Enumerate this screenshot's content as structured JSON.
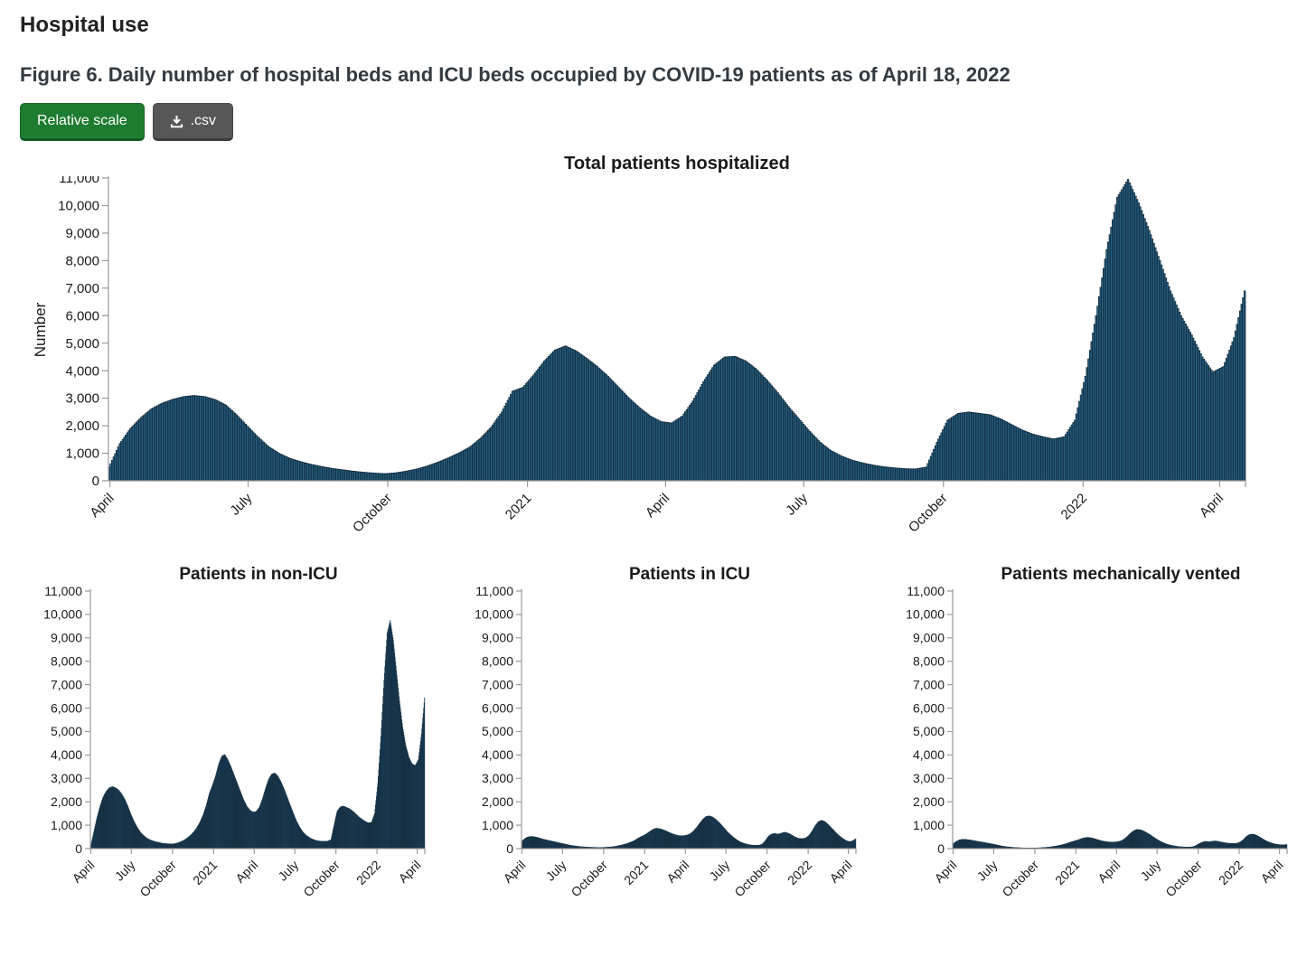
{
  "page": {
    "heading": "Hospital use",
    "figure_caption": "Figure 6. Daily number of hospital beds and ICU beds occupied by COVID-19 patients as of April 18, 2022"
  },
  "toolbar": {
    "relative_scale_label": "Relative scale",
    "csv_label": ".csv",
    "csv_icon": "download-icon"
  },
  "colors": {
    "bar_fill": "#2b6a8d",
    "bar_stroke": "#0e2233",
    "accent_green": "#1e7c31",
    "button_gray": "#575757",
    "axis_line": "#999999",
    "text": "#1a1a1a"
  },
  "axis": {
    "y_label": "Number",
    "y_max": 11000,
    "y_ticks": [
      "0",
      "1,000",
      "2,000",
      "3,000",
      "4,000",
      "5,000",
      "6,000",
      "7,000",
      "8,000",
      "9,000",
      "10,000",
      "11,000"
    ],
    "x_ticks": [
      {
        "label": "April",
        "day": 1
      },
      {
        "label": "July",
        "day": 92
      },
      {
        "label": "October",
        "day": 184
      },
      {
        "label": "2021",
        "day": 276
      },
      {
        "label": "April",
        "day": 367
      },
      {
        "label": "July",
        "day": 458
      },
      {
        "label": "October",
        "day": 550
      },
      {
        "label": "2022",
        "day": 642
      },
      {
        "label": "April",
        "day": 732
      }
    ],
    "total_days": 749
  },
  "chart_data": [
    {
      "type": "bar",
      "title": "Total patients hospitalized",
      "ylabel": "Number",
      "ylim": [
        0,
        11000
      ],
      "x_start": "2020-03-31",
      "x_end": "2022-04-18",
      "sampling_days": 7,
      "values": [
        500,
        1350,
        1900,
        2300,
        2620,
        2820,
        2960,
        3060,
        3100,
        3060,
        2950,
        2750,
        2400,
        2000,
        1600,
        1250,
        1000,
        820,
        700,
        600,
        520,
        450,
        400,
        350,
        310,
        280,
        260,
        290,
        350,
        430,
        540,
        680,
        840,
        1020,
        1230,
        1550,
        1950,
        2500,
        3250,
        3400,
        3850,
        4350,
        4750,
        4900,
        4720,
        4450,
        4150,
        3800,
        3400,
        3000,
        2650,
        2350,
        2150,
        2100,
        2350,
        2900,
        3600,
        4200,
        4500,
        4520,
        4350,
        4050,
        3650,
        3200,
        2700,
        2250,
        1800,
        1400,
        1100,
        900,
        750,
        650,
        570,
        510,
        470,
        440,
        430,
        500,
        1400,
        2200,
        2450,
        2500,
        2450,
        2400,
        2250,
        2050,
        1850,
        1700,
        1600,
        1520,
        1600,
        2200,
        3800,
        6000,
        8400,
        10300,
        10950,
        10100,
        9100,
        8000,
        6900,
        6000,
        5300,
        4500,
        3950,
        4150,
        5200,
        6900
      ]
    },
    {
      "type": "bar",
      "title": "Patients in non-ICU",
      "ylim": [
        0,
        11000
      ],
      "x_start": "2020-03-31",
      "x_end": "2022-04-18",
      "sampling_days": 7,
      "values": [
        80,
        700,
        1300,
        1800,
        2200,
        2450,
        2600,
        2650,
        2600,
        2500,
        2330,
        2100,
        1800,
        1450,
        1150,
        900,
        700,
        560,
        450,
        380,
        330,
        290,
        260,
        230,
        215,
        205,
        200,
        215,
        250,
        300,
        370,
        460,
        570,
        710,
        890,
        1120,
        1420,
        1820,
        2350,
        2700,
        3100,
        3600,
        3950,
        4020,
        3800,
        3500,
        3150,
        2800,
        2450,
        2100,
        1820,
        1650,
        1560,
        1580,
        1750,
        2100,
        2550,
        2950,
        3180,
        3230,
        3100,
        2850,
        2550,
        2200,
        1850,
        1500,
        1180,
        920,
        720,
        580,
        480,
        410,
        360,
        330,
        315,
        310,
        320,
        380,
        1000,
        1600,
        1780,
        1820,
        1760,
        1700,
        1600,
        1480,
        1350,
        1250,
        1160,
        1100,
        1120,
        1500,
        2800,
        4800,
        7200,
        9200,
        9750,
        8900,
        7600,
        6300,
        5200,
        4400,
        3900,
        3620,
        3550,
        3800,
        4900,
        6450
      ]
    },
    {
      "type": "bar",
      "title": "Patients in ICU",
      "ylim": [
        0,
        11000
      ],
      "x_start": "2020-03-31",
      "x_end": "2022-04-18",
      "sampling_days": 7,
      "values": [
        300,
        430,
        500,
        520,
        510,
        480,
        440,
        400,
        370,
        340,
        310,
        280,
        250,
        220,
        190,
        160,
        135,
        115,
        100,
        85,
        75,
        65,
        60,
        55,
        52,
        50,
        52,
        58,
        68,
        82,
        100,
        125,
        155,
        190,
        230,
        280,
        340,
        420,
        500,
        560,
        640,
        730,
        820,
        870,
        860,
        820,
        770,
        710,
        650,
        600,
        565,
        550,
        555,
        580,
        640,
        750,
        900,
        1080,
        1250,
        1370,
        1400,
        1360,
        1270,
        1150,
        1010,
        860,
        710,
        580,
        470,
        370,
        290,
        235,
        195,
        165,
        148,
        140,
        148,
        190,
        330,
        520,
        620,
        650,
        620,
        650,
        700,
        680,
        620,
        540,
        470,
        430,
        425,
        460,
        560,
        750,
        980,
        1150,
        1210,
        1170,
        1060,
        920,
        780,
        640,
        520,
        420,
        340,
        300,
        330,
        420
      ]
    },
    {
      "type": "bar",
      "title": "Patients mechanically vented",
      "ylim": [
        0,
        11000
      ],
      "x_start": "2020-03-31",
      "x_end": "2022-04-18",
      "sampling_days": 7,
      "values": [
        200,
        300,
        370,
        400,
        395,
        380,
        360,
        335,
        310,
        290,
        265,
        240,
        215,
        190,
        160,
        130,
        105,
        85,
        70,
        58,
        48,
        40,
        35,
        30,
        28,
        27,
        28,
        32,
        38,
        47,
        58,
        72,
        90,
        110,
        135,
        165,
        200,
        245,
        290,
        330,
        370,
        420,
        460,
        480,
        470,
        440,
        400,
        360,
        325,
        300,
        285,
        280,
        285,
        300,
        340,
        420,
        540,
        670,
        770,
        820,
        810,
        760,
        690,
        610,
        520,
        430,
        350,
        280,
        220,
        175,
        140,
        115,
        95,
        80,
        72,
        68,
        70,
        85,
        140,
        220,
        280,
        310,
        290,
        310,
        330,
        310,
        280,
        255,
        235,
        225,
        220,
        230,
        280,
        380,
        520,
        600,
        620,
        590,
        520,
        440,
        360,
        295,
        245,
        205,
        180,
        165,
        165,
        175
      ]
    }
  ]
}
